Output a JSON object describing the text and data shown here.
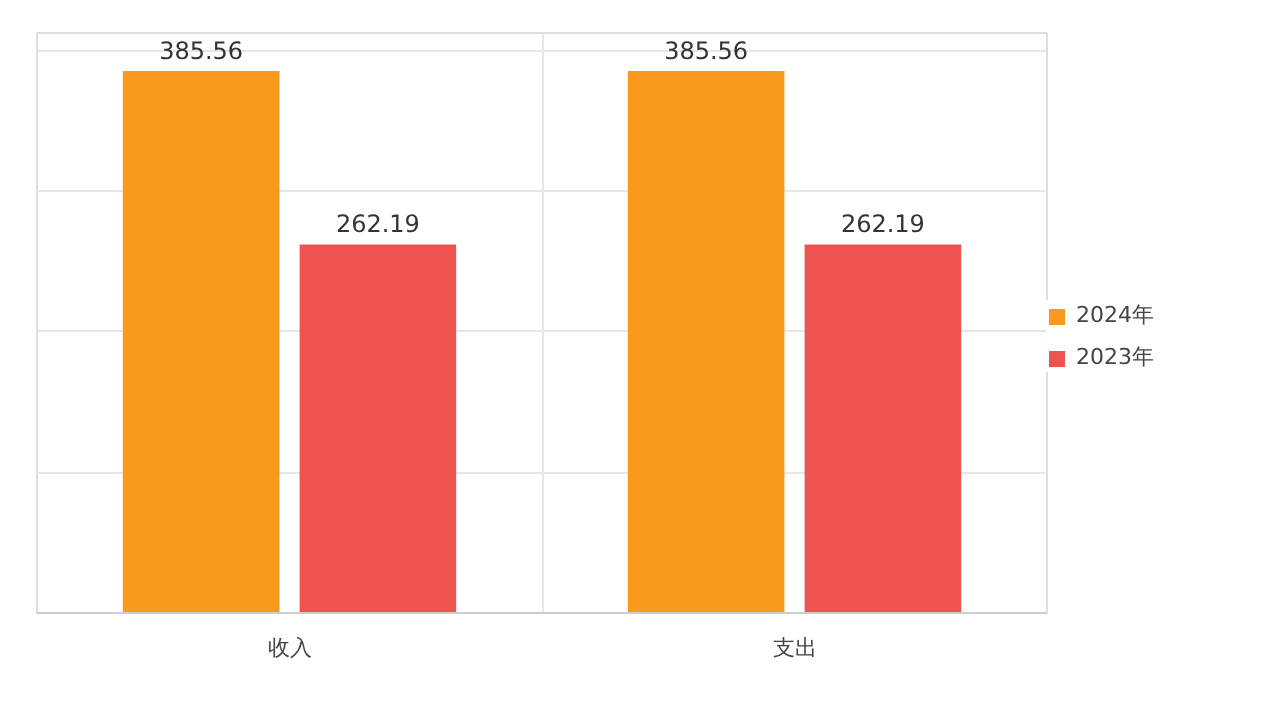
{
  "chart_data": {
    "type": "bar",
    "categories": [
      "收入",
      "支出"
    ],
    "series": [
      {
        "name": "2024年",
        "color": "#f99a1c",
        "values": [
          385.56,
          385.56
        ]
      },
      {
        "name": "2023年",
        "color": "#ef5350",
        "values": [
          262.19,
          262.19
        ]
      }
    ],
    "data_labels": true,
    "grid": true,
    "legend": "right"
  }
}
